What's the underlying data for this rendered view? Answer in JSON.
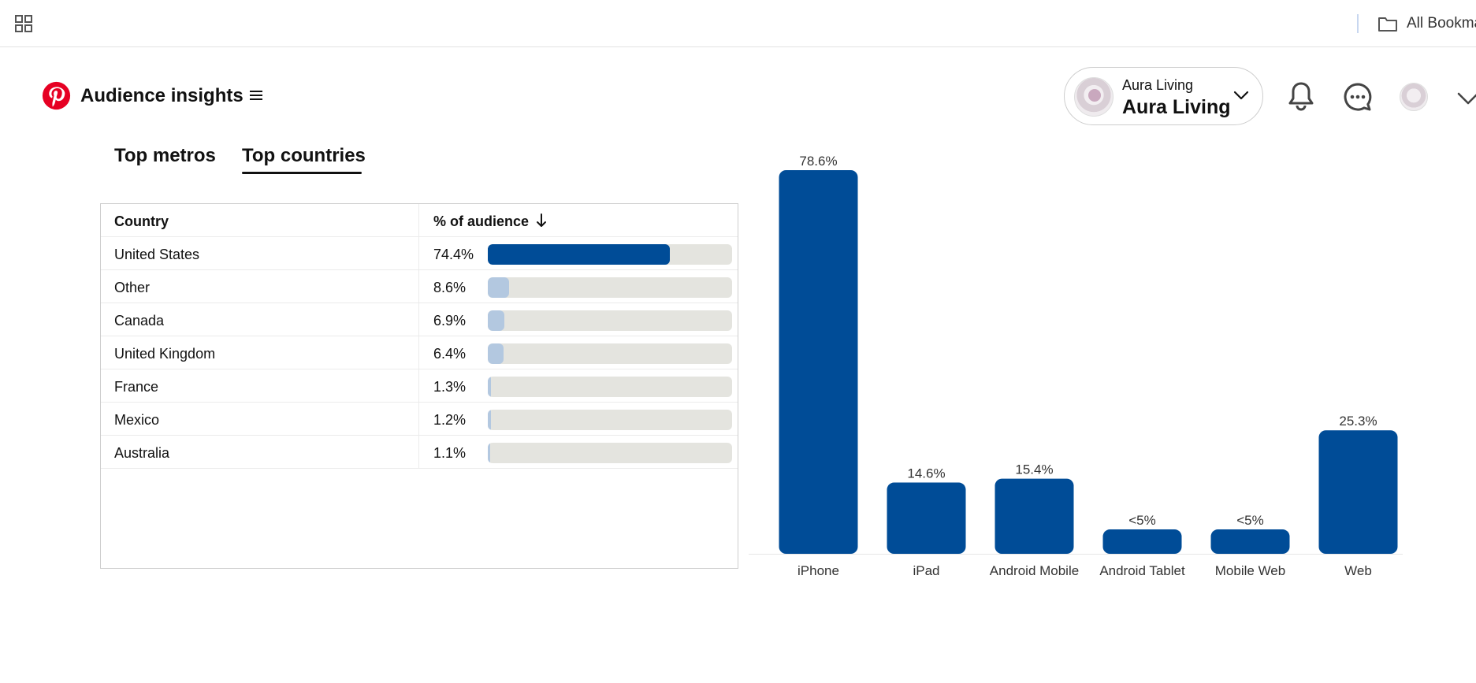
{
  "browser": {
    "bookmarks_label": "All Bookma"
  },
  "header": {
    "title": "Audience insights",
    "account_name_small": "Aura Living",
    "account_name_big": "Aura Living"
  },
  "tabs": [
    {
      "label": "Top metros",
      "active": false
    },
    {
      "label": "Top countries",
      "active": true
    }
  ],
  "table": {
    "headers": {
      "country": "Country",
      "percent": "% of audience"
    },
    "rows": [
      {
        "country": "United States",
        "percent_label": "74.4%",
        "value": 74.4
      },
      {
        "country": "Other",
        "percent_label": "8.6%",
        "value": 8.6
      },
      {
        "country": "Canada",
        "percent_label": "6.9%",
        "value": 6.9
      },
      {
        "country": "United Kingdom",
        "percent_label": "6.4%",
        "value": 6.4
      },
      {
        "country": "France",
        "percent_label": "1.3%",
        "value": 1.3
      },
      {
        "country": "Mexico",
        "percent_label": "1.2%",
        "value": 1.2
      },
      {
        "country": "Australia",
        "percent_label": "1.1%",
        "value": 1.1
      }
    ]
  },
  "chart_data": {
    "type": "bar",
    "categories": [
      "iPhone",
      "iPad",
      "Android Mobile",
      "Android Tablet",
      "Mobile Web",
      "Web"
    ],
    "values": [
      78.6,
      14.6,
      15.4,
      5,
      5,
      25.3
    ],
    "data_labels": [
      "78.6%",
      "14.6%",
      "15.4%",
      "<5%",
      "<5%",
      "25.3%"
    ],
    "ylim": [
      0,
      78.6
    ],
    "grid": false,
    "title": "",
    "xlabel": "",
    "ylabel": ""
  },
  "colors": {
    "primary_bar": "#004c97",
    "light_bar": "#b3c8e0",
    "track": "#e4e4df",
    "pinterest_red": "#e60023"
  },
  "icons": {
    "apps": "grid-apps-icon",
    "folder": "folder-icon",
    "logo": "pinterest-logo-icon",
    "menu": "hamburger-menu-icon",
    "chevron": "chevron-down-icon",
    "bell": "bell-icon",
    "messages": "chat-bubble-icon",
    "sort": "arrow-down-icon"
  }
}
